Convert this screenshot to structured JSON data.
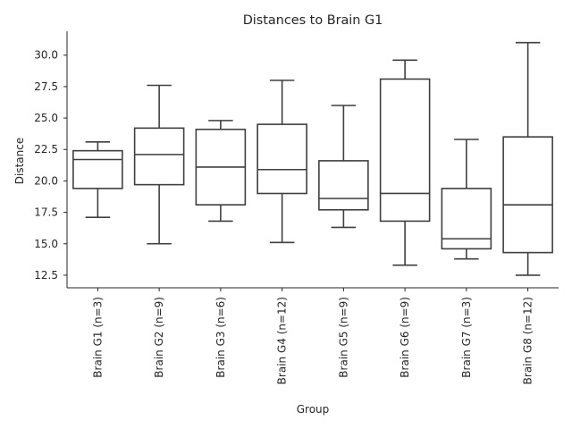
{
  "chart_data": {
    "type": "box",
    "title": "Distances to Brain G1",
    "xlabel": "Group",
    "ylabel": "Distance",
    "ylim": [
      11.5,
      31.9
    ],
    "yticks": [
      "12.5",
      "15.0",
      "17.5",
      "20.0",
      "22.5",
      "25.0",
      "27.5",
      "30.0"
    ],
    "grid": false,
    "categories": [
      "Brain G1 (n=3)",
      "Brain G2 (n=9)",
      "Brain G3 (n=6)",
      "Brain G4 (n=12)",
      "Brain G5 (n=9)",
      "Brain G6 (n=9)",
      "Brain G7 (n=3)",
      "Brain G8 (n=12)"
    ],
    "boxes": [
      {
        "whislo": 17.1,
        "q1": 19.4,
        "med": 21.7,
        "q3": 22.4,
        "whishi": 23.1
      },
      {
        "whislo": 15.0,
        "q1": 19.7,
        "med": 22.1,
        "q3": 24.2,
        "whishi": 27.6
      },
      {
        "whislo": 16.8,
        "q1": 18.1,
        "med": 21.1,
        "q3": 24.1,
        "whishi": 24.8
      },
      {
        "whislo": 15.1,
        "q1": 19.0,
        "med": 20.9,
        "q3": 24.5,
        "whishi": 28.0
      },
      {
        "whislo": 16.3,
        "q1": 17.7,
        "med": 18.6,
        "q3": 21.6,
        "whishi": 26.0
      },
      {
        "whislo": 13.3,
        "q1": 16.8,
        "med": 19.0,
        "q3": 28.1,
        "whishi": 29.6
      },
      {
        "whislo": 13.8,
        "q1": 14.6,
        "med": 15.4,
        "q3": 19.4,
        "whishi": 23.3
      },
      {
        "whislo": 12.5,
        "q1": 14.3,
        "med": 18.1,
        "q3": 23.5,
        "whishi": 31.0
      }
    ]
  }
}
